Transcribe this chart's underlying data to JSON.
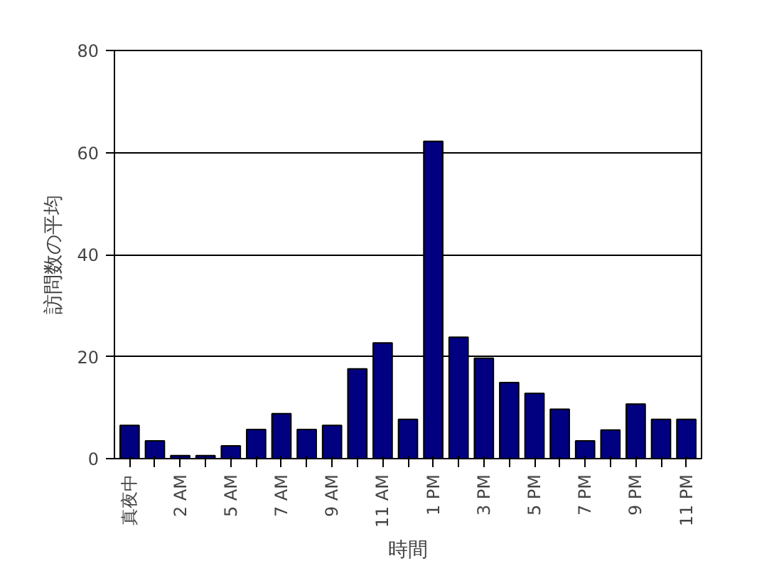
{
  "chart_data": {
    "type": "bar",
    "xlabel": "時間",
    "ylabel": "訪問数の平均",
    "categories": [
      "真夜中",
      null,
      "2 AM",
      null,
      "5 AM",
      null,
      "7 AM",
      null,
      "9 AM",
      null,
      "11 AM",
      null,
      "1 PM",
      null,
      "3 PM",
      null,
      "5 PM",
      null,
      "7 PM",
      null,
      "9 PM",
      null,
      "11 PM"
    ],
    "values": [
      6.5,
      3.5,
      0.6,
      0.6,
      2.5,
      5.7,
      8.8,
      5.7,
      6.5,
      17.6,
      22.7,
      7.7,
      62.2,
      23.8,
      19.7,
      14.9,
      12.8,
      9.7,
      3.5,
      5.6,
      10.7,
      7.7,
      7.7
    ],
    "color": "#000080",
    "ylim": [
      0,
      80
    ],
    "yticks": [
      0,
      20,
      40,
      60,
      80
    ],
    "grid": "y"
  }
}
